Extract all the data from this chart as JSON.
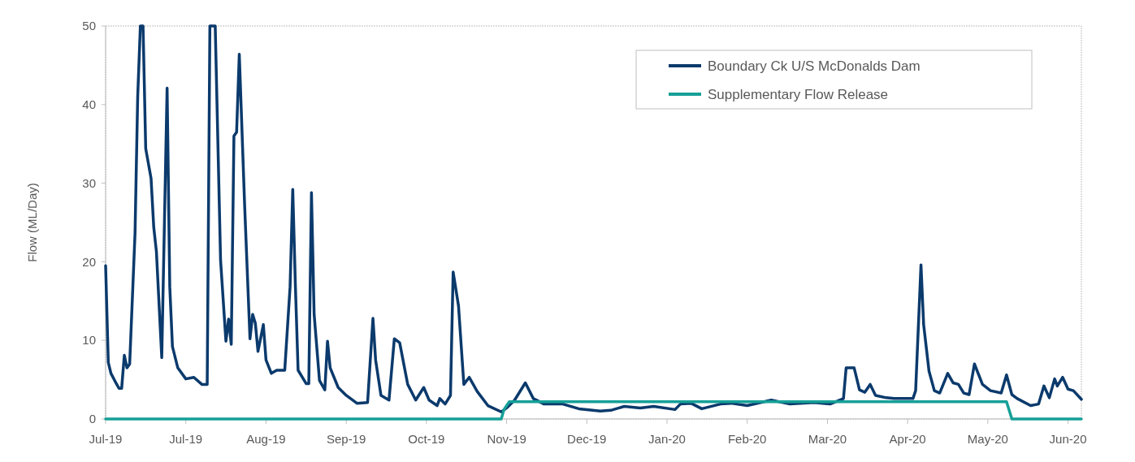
{
  "chart_data": {
    "type": "line",
    "ylabel": "Flow (ML/Day)",
    "legend": "top right",
    "grid": false,
    "marker": "none",
    "line_style": "solid",
    "xlim": [
      "2019-07-01",
      "2020-06-30"
    ],
    "xticks": [
      {
        "value": "2019-07-01",
        "label": "Jul-19"
      },
      {
        "value": "2019-07-31",
        "label": "Jul-19"
      },
      {
        "value": "2019-08-30",
        "label": "Aug-19"
      },
      {
        "value": "2019-09-29",
        "label": "Sep-19"
      },
      {
        "value": "2019-10-29",
        "label": "Oct-19"
      },
      {
        "value": "2019-11-28",
        "label": "Nov-19"
      },
      {
        "value": "2019-12-28",
        "label": "Dec-19"
      },
      {
        "value": "2020-01-27",
        "label": "Jan-20"
      },
      {
        "value": "2020-02-26",
        "label": "Feb-20"
      },
      {
        "value": "2020-03-27",
        "label": "Mar-20"
      },
      {
        "value": "2020-04-26",
        "label": "Apr-20"
      },
      {
        "value": "2020-05-26",
        "label": "May-20"
      },
      {
        "value": "2020-06-25",
        "label": "Jun-20"
      }
    ],
    "ylim": [
      0,
      50
    ],
    "yticks": [
      0,
      10,
      20,
      30,
      40,
      50
    ],
    "series": [
      {
        "name": "Boundary Ck U/S McDonalds Dam",
        "color": "#0b3a6c",
        "x": [
          "2019-07-01",
          "2019-07-02",
          "2019-07-03",
          "2019-07-05",
          "2019-07-06",
          "2019-07-07",
          "2019-07-08",
          "2019-07-09",
          "2019-07-10",
          "2019-07-12",
          "2019-07-13",
          "2019-07-14",
          "2019-07-15",
          "2019-07-16",
          "2019-07-18",
          "2019-07-19",
          "2019-07-20",
          "2019-07-22",
          "2019-07-24",
          "2019-07-25",
          "2019-07-26",
          "2019-07-28",
          "2019-07-31",
          "2019-08-03",
          "2019-08-06",
          "2019-08-08",
          "2019-08-09",
          "2019-08-11",
          "2019-08-13",
          "2019-08-15",
          "2019-08-16",
          "2019-08-17",
          "2019-08-18",
          "2019-08-19",
          "2019-08-20",
          "2019-08-22",
          "2019-08-24",
          "2019-08-25",
          "2019-08-26",
          "2019-08-27",
          "2019-08-29",
          "2019-08-30",
          "2019-09-01",
          "2019-09-03",
          "2019-09-06",
          "2019-09-08",
          "2019-09-09",
          "2019-09-10",
          "2019-09-11",
          "2019-09-14",
          "2019-09-15",
          "2019-09-16",
          "2019-09-17",
          "2019-09-19",
          "2019-09-21",
          "2019-09-22",
          "2019-09-23",
          "2019-09-26",
          "2019-09-29",
          "2019-10-03",
          "2019-10-07",
          "2019-10-09",
          "2019-10-10",
          "2019-10-12",
          "2019-10-15",
          "2019-10-17",
          "2019-10-19",
          "2019-10-22",
          "2019-10-25",
          "2019-10-28",
          "2019-10-30",
          "2019-11-02",
          "2019-11-03",
          "2019-11-05",
          "2019-11-07",
          "2019-11-08",
          "2019-11-10",
          "2019-11-12",
          "2019-11-14",
          "2019-11-17",
          "2019-11-21",
          "2019-11-26",
          "2019-11-28",
          "2019-12-01",
          "2019-12-05",
          "2019-12-08",
          "2019-12-12",
          "2019-12-19",
          "2019-12-25",
          "2020-01-02",
          "2020-01-06",
          "2020-01-11",
          "2020-01-17",
          "2020-01-22",
          "2020-01-30",
          "2020-02-01",
          "2020-02-05",
          "2020-02-09",
          "2020-02-16",
          "2020-02-20",
          "2020-02-26",
          "2020-03-06",
          "2020-03-13",
          "2020-03-22",
          "2020-03-28",
          "2020-04-02",
          "2020-04-03",
          "2020-04-06",
          "2020-04-08",
          "2020-04-10",
          "2020-04-12",
          "2020-04-14",
          "2020-04-18",
          "2020-04-21",
          "2020-04-28",
          "2020-04-29",
          "2020-05-01",
          "2020-05-02",
          "2020-05-04",
          "2020-05-06",
          "2020-05-08",
          "2020-05-11",
          "2020-05-13",
          "2020-05-15",
          "2020-05-17",
          "2020-05-19",
          "2020-05-21",
          "2020-05-24",
          "2020-05-27",
          "2020-05-31",
          "2020-06-02",
          "2020-06-04",
          "2020-06-06",
          "2020-06-11",
          "2020-06-14",
          "2020-06-16",
          "2020-06-18",
          "2020-06-20",
          "2020-06-21",
          "2020-06-23",
          "2020-06-25",
          "2020-06-27",
          "2020-06-30"
        ],
        "values": [
          19.5,
          7.2,
          5.8,
          4.5,
          3.9,
          3.9,
          8.1,
          6.5,
          7.0,
          23.6,
          41,
          50,
          50,
          34.4,
          30.6,
          24.4,
          21.3,
          7.8,
          42.1,
          16.8,
          9.2,
          6.5,
          5.1,
          5.3,
          4.4,
          4.4,
          50,
          50,
          20.2,
          9.9,
          12.7,
          9.5,
          36,
          36.5,
          46.4,
          27.2,
          10.2,
          13.3,
          12.2,
          8.6,
          12,
          7.5,
          5.8,
          6.2,
          6.2,
          16.8,
          29.2,
          16.8,
          6.2,
          4.5,
          4.5,
          28.8,
          13.3,
          4.9,
          3.7,
          9.9,
          6.5,
          4.0,
          3.0,
          2.0,
          2.1,
          12.8,
          7.5,
          3.0,
          2.4,
          10.2,
          9.7,
          4.4,
          2.4,
          4.0,
          2.4,
          1.7,
          2.6,
          1.9,
          3.0,
          18.7,
          14.4,
          4.4,
          5.3,
          3.5,
          1.7,
          0.9,
          1.4,
          2.4,
          4.6,
          2.6,
          1.9,
          1.9,
          1.3,
          1.0,
          1.1,
          1.6,
          1.4,
          1.6,
          1.2,
          1.9,
          2.0,
          1.3,
          1.9,
          2.0,
          1.7,
          2.4,
          1.9,
          2.1,
          1.9,
          2.6,
          6.5,
          6.5,
          3.7,
          3.4,
          4.4,
          3.0,
          2.7,
          2.6,
          2.6,
          3.6,
          19.6,
          12.0,
          6.1,
          3.6,
          3.3,
          5.8,
          4.6,
          4.4,
          3.3,
          3.1,
          7.0,
          4.4,
          3.6,
          3.3,
          5.6,
          3.1,
          2.6,
          1.7,
          1.9,
          4.2,
          2.7,
          5.1,
          4.2,
          5.3,
          3.8,
          3.6,
          2.5
        ]
      },
      {
        "name": "Supplementary Flow Release",
        "color": "#16a097",
        "x": [
          "2019-07-01",
          "2019-11-26",
          "2019-11-27",
          "2019-11-29",
          "2020-06-02",
          "2020-06-04",
          "2020-06-30"
        ],
        "values": [
          0,
          0,
          1.2,
          2.2,
          2.2,
          0,
          0
        ]
      }
    ]
  }
}
